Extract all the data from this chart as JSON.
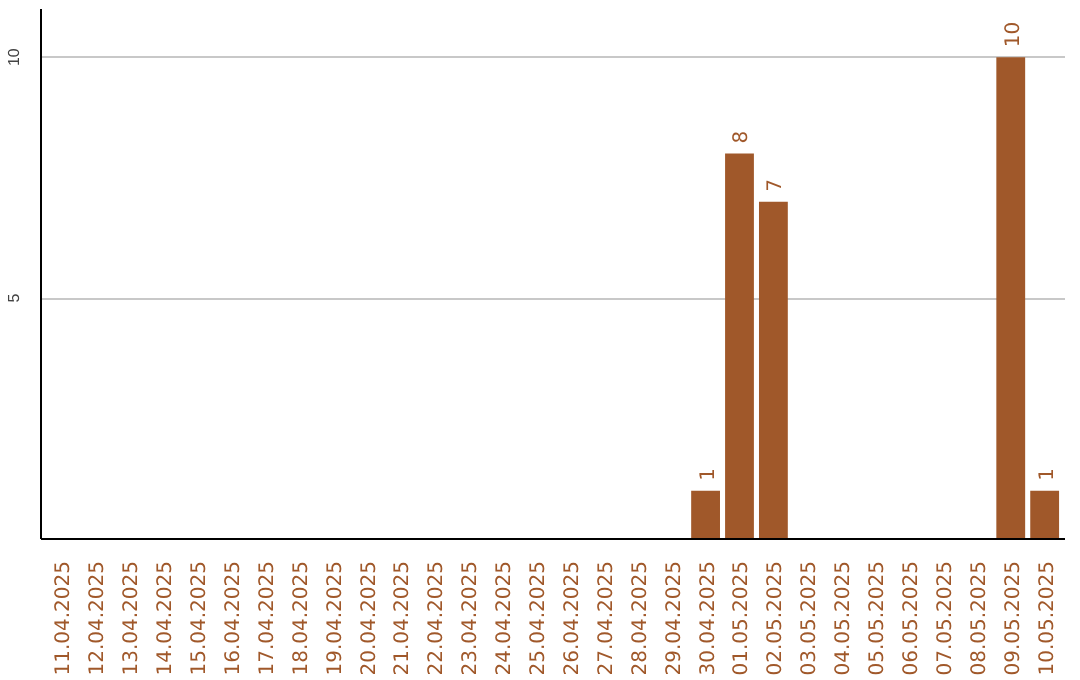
{
  "chart_data": {
    "type": "bar",
    "categories": [
      "11.04.2025",
      "12.04.2025",
      "13.04.2025",
      "14.04.2025",
      "15.04.2025",
      "16.04.2025",
      "17.04.2025",
      "18.04.2025",
      "19.04.2025",
      "20.04.2025",
      "21.04.2025",
      "22.04.2025",
      "23.04.2025",
      "24.04.2025",
      "25.04.2025",
      "26.04.2025",
      "27.04.2025",
      "28.04.2025",
      "29.04.2025",
      "30.04.2025",
      "01.05.2025",
      "02.05.2025",
      "03.05.2025",
      "04.05.2025",
      "05.05.2025",
      "06.05.2025",
      "07.05.2025",
      "08.05.2025",
      "09.05.2025",
      "10.05.2025"
    ],
    "values": [
      0,
      0,
      0,
      0,
      0,
      0,
      0,
      0,
      0,
      0,
      0,
      0,
      0,
      0,
      0,
      0,
      0,
      0,
      0,
      1,
      8,
      7,
      0,
      0,
      0,
      0,
      0,
      0,
      10,
      1
    ],
    "value_labels": [
      null,
      null,
      null,
      null,
      null,
      null,
      null,
      null,
      null,
      null,
      null,
      null,
      null,
      null,
      null,
      null,
      null,
      null,
      null,
      "1",
      "8",
      "7",
      null,
      null,
      null,
      null,
      null,
      null,
      "10",
      "1"
    ],
    "color": "#a0582a",
    "ylim": [
      0,
      11
    ],
    "yticks": [
      5,
      10
    ],
    "grid": "y"
  }
}
